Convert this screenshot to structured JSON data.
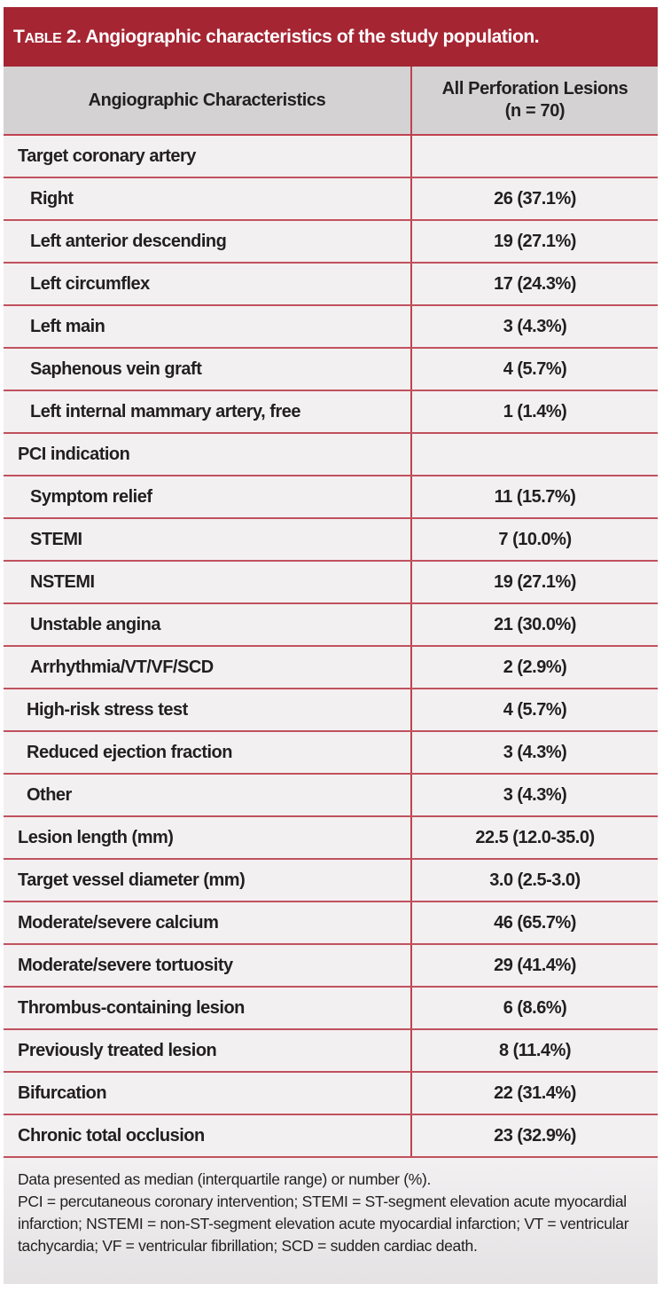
{
  "table": {
    "title_prefix_big": "T",
    "title_prefix_small": "ABLE",
    "title_text": " 2. Angiographic characteristics of the study population.",
    "columns": [
      "Angiographic Characteristics",
      "All Perforation Lesions",
      "(n = 70)"
    ],
    "rows": [
      {
        "label": "Target coronary artery",
        "value": "",
        "level": 0
      },
      {
        "label": "Right",
        "value": "26 (37.1%)",
        "level": 1
      },
      {
        "label": "Left anterior descending",
        "value": "19 (27.1%)",
        "level": 1
      },
      {
        "label": "Left circumflex",
        "value": "17 (24.3%)",
        "level": 1
      },
      {
        "label": "Left main",
        "value": "3 (4.3%)",
        "level": 1
      },
      {
        "label": "Saphenous vein graft",
        "value": "4 (5.7%)",
        "level": 1
      },
      {
        "label": "Left internal mammary artery, free",
        "value": "1 (1.4%)",
        "level": 1
      },
      {
        "label": "PCI indication",
        "value": "",
        "level": 0
      },
      {
        "label": "Symptom relief",
        "value": "11 (15.7%)",
        "level": 1
      },
      {
        "label": "STEMI",
        "value": "7 (10.0%)",
        "level": 1
      },
      {
        "label": "NSTEMI",
        "value": "19 (27.1%)",
        "level": 1
      },
      {
        "label": "Unstable angina",
        "value": "21 (30.0%)",
        "level": 1
      },
      {
        "label": "Arrhythmia/VT/VF/SCD",
        "value": "2 (2.9%)",
        "level": 1
      },
      {
        "label": "High-risk stress test",
        "value": "4 (5.7%)",
        "level": 2
      },
      {
        "label": "Reduced ejection fraction",
        "value": "3 (4.3%)",
        "level": 2
      },
      {
        "label": "Other",
        "value": "3 (4.3%)",
        "level": 2
      },
      {
        "label": "Lesion length (mm)",
        "value": "22.5 (12.0-35.0)",
        "level": 0
      },
      {
        "label": "Target vessel diameter (mm)",
        "value": "3.0 (2.5-3.0)",
        "level": 0
      },
      {
        "label": "Moderate/severe calcium",
        "value": "46 (65.7%)",
        "level": 0
      },
      {
        "label": "Moderate/severe tortuosity",
        "value": "29 (41.4%)",
        "level": 0
      },
      {
        "label": "Thrombus-containing lesion",
        "value": "6 (8.6%)",
        "level": 0
      },
      {
        "label": "Previously treated lesion",
        "value": "8 (11.4%)",
        "level": 0
      },
      {
        "label": "Bifurcation",
        "value": "22 (31.4%)",
        "level": 0
      },
      {
        "label": "Chronic total occlusion",
        "value": "23 (32.9%)",
        "level": 0
      }
    ],
    "footnotes": [
      "Data presented as median (interquartile range) or number (%).",
      "PCI = percutaneous coronary intervention; STEMI = ST-segment elevation acute myocardial infarction; NSTEMI = non-ST-segment elevation acute myocardial infarction; VT = ventricular tachycardia; VF = ventricular fibrillation; SCD = sudden cardiac death."
    ]
  },
  "colors": {
    "title_band": "#a52533",
    "header_bg": "#d4d2d3",
    "row_bg": "#f3f0f1",
    "rule": "#c0424f"
  }
}
